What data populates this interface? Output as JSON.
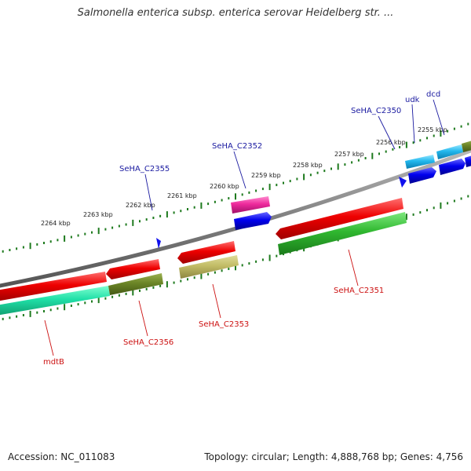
{
  "title": "Salmonella enterica subsp. enterica serovar Heidelberg str. ...",
  "accession": "Accession: NC_011083",
  "summary": "Topology: circular; Length: 4,888,768 bp; Genes: 4,756",
  "scale_ticks": [
    "2264 kbp",
    "2263 kbp",
    "2262 kbp",
    "2261 kbp",
    "2260 kbp",
    "2259 kbp",
    "2258 kbp",
    "2257 kbp",
    "2256 kbp",
    "2255 kbp"
  ],
  "gene_labels": {
    "sehac2355": "SeHA_C2355",
    "sehac2352": "SeHA_C2352",
    "sehac2350": "SeHA_C2350",
    "udk": "udk",
    "dcd": "dcd",
    "mdtb": "mdtB",
    "sehac2356": "SeHA_C2356",
    "sehac2353": "SeHA_C2353",
    "sehac2351": "SeHA_C2351"
  },
  "colors": {
    "forward_label": "#1a1aa0",
    "reverse_label": "#cc1111",
    "backbone": "#888888",
    "ticks": "#1e7a1e"
  }
}
